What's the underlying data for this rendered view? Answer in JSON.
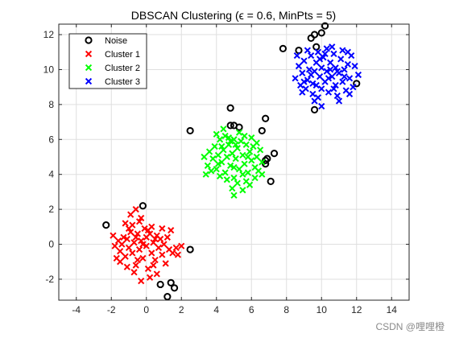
{
  "chart_data": {
    "type": "scatter",
    "title": "DBSCAN Clustering (ϵ = 0.6, MinPts = 5)",
    "xlabel": "",
    "ylabel": "",
    "xlim": [
      -5,
      15
    ],
    "ylim": [
      -3.2,
      12.6
    ],
    "xticks": [
      -4,
      -2,
      0,
      2,
      4,
      6,
      8,
      10,
      12,
      14
    ],
    "yticks": [
      -2,
      0,
      2,
      4,
      6,
      8,
      10,
      12
    ],
    "grid": true,
    "legend_position": "top-left",
    "series": [
      {
        "name": "Noise",
        "marker": "circle",
        "color": "#000000",
        "points": [
          [
            -2.3,
            1.1
          ],
          [
            -0.2,
            2.2
          ],
          [
            2.5,
            -0.3
          ],
          [
            0.8,
            -2.3
          ],
          [
            1.4,
            -2.2
          ],
          [
            1.6,
            -2.5
          ],
          [
            1.2,
            -3.0
          ],
          [
            2.5,
            6.5
          ],
          [
            4.8,
            7.8
          ],
          [
            4.8,
            6.8
          ],
          [
            5.0,
            6.8
          ],
          [
            5.3,
            6.7
          ],
          [
            6.6,
            6.5
          ],
          [
            6.8,
            7.2
          ],
          [
            6.8,
            4.8
          ],
          [
            6.8,
            4.6
          ],
          [
            6.9,
            4.9
          ],
          [
            7.3,
            5.2
          ],
          [
            7.1,
            3.6
          ],
          [
            7.8,
            11.2
          ],
          [
            8.7,
            11.1
          ],
          [
            9.4,
            11.8
          ],
          [
            9.6,
            12.0
          ],
          [
            9.7,
            11.3
          ],
          [
            10.0,
            12.1
          ],
          [
            10.2,
            12.5
          ],
          [
            9.6,
            7.7
          ],
          [
            12.0,
            9.2
          ]
        ]
      },
      {
        "name": "Cluster 1",
        "marker": "x",
        "color": "#ff0000",
        "points": [
          [
            -1.9,
            0.5
          ],
          [
            -1.8,
            -0.1
          ],
          [
            -1.6,
            0.2
          ],
          [
            -1.5,
            -0.4
          ],
          [
            -1.4,
            0.0
          ],
          [
            -1.3,
            0.4
          ],
          [
            -1.2,
            -0.7
          ],
          [
            -1.1,
            0.3
          ],
          [
            -1.0,
            -0.2
          ],
          [
            -0.9,
            0.7
          ],
          [
            -0.8,
            -0.5
          ],
          [
            -0.8,
            1.1
          ],
          [
            -0.7,
            0.1
          ],
          [
            -0.6,
            -1.2
          ],
          [
            -0.5,
            0.6
          ],
          [
            -0.4,
            -0.3
          ],
          [
            -0.4,
            1.3
          ],
          [
            -0.3,
            0.2
          ],
          [
            -0.2,
            -0.8
          ],
          [
            -0.1,
            0.9
          ],
          [
            0.0,
            -0.1
          ],
          [
            0.0,
            0.4
          ],
          [
            0.1,
            -1.4
          ],
          [
            0.2,
            0.6
          ],
          [
            0.3,
            -0.5
          ],
          [
            0.3,
            1.0
          ],
          [
            0.4,
            0.1
          ],
          [
            0.5,
            -0.9
          ],
          [
            0.6,
            0.5
          ],
          [
            0.7,
            -0.2
          ],
          [
            0.8,
            0.3
          ],
          [
            0.9,
            -0.6
          ],
          [
            1.0,
            0.0
          ],
          [
            1.1,
            -1.1
          ],
          [
            1.2,
            0.4
          ],
          [
            1.3,
            -0.3
          ],
          [
            1.5,
            -0.5
          ],
          [
            1.7,
            -0.2
          ],
          [
            1.8,
            -0.6
          ],
          [
            2.0,
            -0.1
          ],
          [
            -0.9,
            1.7
          ],
          [
            -0.6,
            2.0
          ],
          [
            -0.3,
            1.5
          ],
          [
            -1.2,
            1.2
          ],
          [
            -1.5,
            -1.0
          ],
          [
            -1.1,
            -1.3
          ],
          [
            -0.7,
            -1.6
          ],
          [
            -0.3,
            -2.1
          ],
          [
            0.2,
            -1.9
          ],
          [
            0.6,
            -1.7
          ],
          [
            -0.5,
            -0.9
          ],
          [
            0.4,
            -1.2
          ],
          [
            -1.7,
            -0.8
          ],
          [
            1.4,
            0.8
          ],
          [
            0.9,
            0.9
          ],
          [
            -0.2,
            0.0
          ],
          [
            0.1,
            0.8
          ],
          [
            -0.6,
            0.4
          ],
          [
            0.5,
            0.3
          ],
          [
            -1.0,
            0.9
          ]
        ]
      },
      {
        "name": "Cluster 2",
        "marker": "x",
        "color": "#00ff00",
        "points": [
          [
            3.5,
            4.5
          ],
          [
            3.6,
            5.3
          ],
          [
            3.8,
            4.9
          ],
          [
            3.9,
            5.6
          ],
          [
            4.0,
            4.3
          ],
          [
            4.1,
            5.1
          ],
          [
            4.2,
            6.0
          ],
          [
            4.3,
            4.7
          ],
          [
            4.4,
            5.4
          ],
          [
            4.5,
            4.1
          ],
          [
            4.5,
            6.2
          ],
          [
            4.6,
            5.0
          ],
          [
            4.7,
            5.7
          ],
          [
            4.8,
            4.5
          ],
          [
            4.9,
            5.2
          ],
          [
            5.0,
            3.8
          ],
          [
            5.0,
            6.0
          ],
          [
            5.1,
            4.9
          ],
          [
            5.2,
            5.5
          ],
          [
            5.3,
            4.3
          ],
          [
            5.4,
            5.9
          ],
          [
            5.5,
            5.1
          ],
          [
            5.6,
            4.6
          ],
          [
            5.7,
            5.7
          ],
          [
            5.8,
            4.1
          ],
          [
            5.9,
            5.3
          ],
          [
            6.0,
            4.8
          ],
          [
            6.1,
            5.6
          ],
          [
            6.2,
            4.4
          ],
          [
            6.3,
            5.0
          ],
          [
            6.4,
            4.2
          ],
          [
            6.5,
            5.4
          ],
          [
            6.6,
            4.0
          ],
          [
            4.9,
            3.2
          ],
          [
            5.0,
            2.8
          ],
          [
            5.2,
            3.5
          ],
          [
            5.5,
            3.1
          ],
          [
            5.7,
            3.6
          ],
          [
            4.6,
            3.7
          ],
          [
            3.4,
            4.0
          ],
          [
            3.3,
            5.0
          ],
          [
            4.0,
            6.3
          ],
          [
            4.4,
            6.6
          ],
          [
            4.7,
            6.1
          ],
          [
            5.6,
            6.2
          ],
          [
            6.0,
            6.1
          ],
          [
            6.3,
            5.8
          ],
          [
            5.3,
            6.4
          ],
          [
            4.2,
            3.9
          ],
          [
            5.9,
            3.4
          ],
          [
            6.6,
            4.7
          ],
          [
            4.8,
            5.9
          ],
          [
            5.1,
            5.7
          ],
          [
            4.3,
            5.6
          ],
          [
            5.5,
            4.0
          ],
          [
            6.2,
            3.8
          ],
          [
            3.7,
            4.2
          ],
          [
            4.1,
            4.6
          ],
          [
            5.8,
            5.0
          ],
          [
            5.0,
            4.4
          ]
        ]
      },
      {
        "name": "Cluster 3",
        "marker": "x",
        "color": "#0000ff",
        "points": [
          [
            8.5,
            9.5
          ],
          [
            8.7,
            10.2
          ],
          [
            8.8,
            9.1
          ],
          [
            8.9,
            9.8
          ],
          [
            9.0,
            10.5
          ],
          [
            9.1,
            8.9
          ],
          [
            9.2,
            9.4
          ],
          [
            9.3,
            10.0
          ],
          [
            9.4,
            10.8
          ],
          [
            9.5,
            8.6
          ],
          [
            9.5,
            9.2
          ],
          [
            9.6,
            9.9
          ],
          [
            9.7,
            10.4
          ],
          [
            9.8,
            8.4
          ],
          [
            9.8,
            11.0
          ],
          [
            9.9,
            9.6
          ],
          [
            10.0,
            10.1
          ],
          [
            10.0,
            8.9
          ],
          [
            10.1,
            10.7
          ],
          [
            10.2,
            9.3
          ],
          [
            10.3,
            9.9
          ],
          [
            10.3,
            11.2
          ],
          [
            10.4,
            8.7
          ],
          [
            10.5,
            10.4
          ],
          [
            10.6,
            9.6
          ],
          [
            10.7,
            10.9
          ],
          [
            10.8,
            9.1
          ],
          [
            10.8,
            10.1
          ],
          [
            10.9,
            8.5
          ],
          [
            11.0,
            9.8
          ],
          [
            11.1,
            10.6
          ],
          [
            11.2,
            9.3
          ],
          [
            11.3,
            10.0
          ],
          [
            11.4,
            8.8
          ],
          [
            11.5,
            10.3
          ],
          [
            11.6,
            9.5
          ],
          [
            11.7,
            10.8
          ],
          [
            11.8,
            9.0
          ],
          [
            11.9,
            10.2
          ],
          [
            11.5,
            11.0
          ],
          [
            11.2,
            11.1
          ],
          [
            10.6,
            11.3
          ],
          [
            9.2,
            11.1
          ],
          [
            8.6,
            10.8
          ],
          [
            8.9,
            8.7
          ],
          [
            9.6,
            8.2
          ],
          [
            10.0,
            7.9
          ],
          [
            11.0,
            8.2
          ],
          [
            11.6,
            8.6
          ],
          [
            12.1,
            9.7
          ],
          [
            10.4,
            9.5
          ],
          [
            9.9,
            10.6
          ],
          [
            10.9,
            9.9
          ],
          [
            9.4,
            9.7
          ],
          [
            10.2,
            10.9
          ],
          [
            11.3,
            9.6
          ],
          [
            9.0,
            9.3
          ],
          [
            10.7,
            8.9
          ],
          [
            9.7,
            9.1
          ],
          [
            10.5,
            10.0
          ]
        ]
      }
    ]
  },
  "watermark": "CSDN @哩哩橙"
}
